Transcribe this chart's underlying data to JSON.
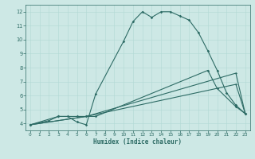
{
  "title": "",
  "xlabel": "Humidex (Indice chaleur)",
  "ylabel": "",
  "bg_color": "#cde8e5",
  "line_color": "#2d6b65",
  "grid_color": "#b2d8d4",
  "xlim": [
    -0.5,
    23.5
  ],
  "ylim": [
    3.5,
    12.5
  ],
  "xticks": [
    0,
    1,
    2,
    3,
    4,
    5,
    6,
    7,
    8,
    9,
    10,
    11,
    12,
    13,
    14,
    15,
    16,
    17,
    18,
    19,
    20,
    21,
    22,
    23
  ],
  "yticks": [
    4,
    5,
    6,
    7,
    8,
    9,
    10,
    11,
    12
  ],
  "curve1_x": [
    0,
    2,
    3,
    4,
    5,
    6,
    7,
    10,
    11,
    12,
    13,
    14,
    15,
    16,
    17,
    18,
    19,
    20,
    21,
    22,
    23
  ],
  "curve1_y": [
    3.9,
    4.2,
    4.5,
    4.5,
    4.1,
    3.9,
    6.1,
    9.9,
    11.3,
    12.0,
    11.6,
    12.0,
    12.0,
    11.7,
    11.4,
    10.5,
    9.2,
    7.8,
    6.2,
    5.3,
    4.7
  ],
  "curve2_x": [
    0,
    3,
    5,
    6,
    7,
    19,
    20,
    22,
    23
  ],
  "curve2_y": [
    3.9,
    4.5,
    4.5,
    4.5,
    4.5,
    7.8,
    6.5,
    5.2,
    4.7
  ],
  "curve3_x": [
    0,
    6,
    22,
    23
  ],
  "curve3_y": [
    3.9,
    4.5,
    6.8,
    4.7
  ],
  "curve4_x": [
    0,
    6,
    22,
    23
  ],
  "curve4_y": [
    3.9,
    4.5,
    7.6,
    4.7
  ]
}
